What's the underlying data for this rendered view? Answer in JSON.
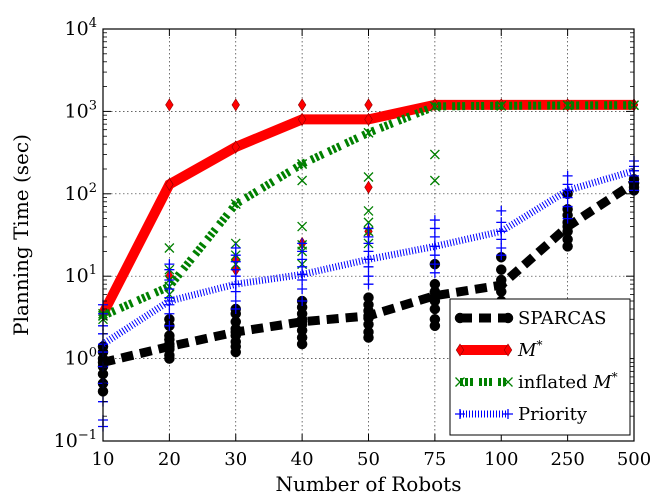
{
  "chart_data": {
    "type": "line",
    "xlabel": "Number of Robots",
    "ylabel": "Planning Time (sec)",
    "y_scale": "log",
    "ylim": [
      0.1,
      10000
    ],
    "y_tick_labels": [
      {
        "base": "10",
        "exp": "−1"
      },
      {
        "base": "10",
        "exp": "0"
      },
      {
        "base": "10",
        "exp": "1"
      },
      {
        "base": "10",
        "exp": "2"
      },
      {
        "base": "10",
        "exp": "3"
      },
      {
        "base": "10",
        "exp": "4"
      }
    ],
    "categories": [
      "10",
      "20",
      "30",
      "40",
      "50",
      "75",
      "100",
      "250",
      "500"
    ],
    "grid": true,
    "legend_position": "lower-right",
    "series": [
      {
        "name": "SPARCAS",
        "color": "#000000",
        "line_style": "dashed-thick",
        "marker": "circle",
        "values": [
          0.9,
          1.4,
          2.1,
          2.8,
          3.3,
          5.8,
          7.8,
          40,
          135
        ],
        "scatter": [
          [
            0.4,
            0.5,
            0.65,
            0.8,
            1.0,
            1.2,
            1.4
          ],
          [
            1.0,
            1.1,
            1.3,
            1.5,
            1.7,
            1.9,
            2.5,
            3.0
          ],
          [
            1.2,
            1.4,
            1.6,
            1.9,
            2.3,
            2.8,
            3.5,
            4.0
          ],
          [
            1.5,
            1.8,
            2.2,
            2.6,
            3.0,
            3.5,
            4.2,
            5.0
          ],
          [
            1.8,
            2.1,
            2.6,
            3.1,
            3.8,
            4.5,
            5.5
          ],
          [
            2.5,
            3.0,
            4.0,
            5.0,
            6.5,
            8.0,
            14
          ],
          [
            5.0,
            6.5,
            9.0,
            12,
            17
          ],
          [
            23,
            28,
            35,
            45,
            55,
            65,
            100
          ],
          [
            110,
            120,
            135,
            150
          ]
        ]
      },
      {
        "name": "M*",
        "label_base": "M",
        "label_sup": "*",
        "color": "#ff0000",
        "line_style": "solid-thick",
        "marker": "thin-diamond",
        "values": [
          3.5,
          130,
          370,
          800,
          800,
          1200,
          1200,
          1200,
          1200
        ],
        "scatter": [
          [
            3.5
          ],
          [
            10,
            130,
            1200
          ],
          [
            12,
            16,
            370,
            1200
          ],
          [
            25,
            800,
            1200
          ],
          [
            35,
            120,
            1200
          ],
          [
            1200
          ],
          [
            1200
          ],
          [
            1200
          ],
          [
            1200
          ]
        ]
      },
      {
        "name": "inflated M*",
        "label_base": "inflated M",
        "label_sup": "*",
        "color": "#008000",
        "line_style": "dashdot-thick",
        "marker": "x",
        "values": [
          3.3,
          7.5,
          75,
          230,
          550,
          1150,
          1170,
          1180,
          1190
        ],
        "scatter": [
          [
            3.0,
            3.3,
            3.5
          ],
          [
            6,
            7.5,
            9,
            12,
            22
          ],
          [
            14,
            18,
            25,
            75
          ],
          [
            14,
            20,
            24,
            40,
            145,
            230
          ],
          [
            25,
            35,
            45,
            62,
            160,
            550
          ],
          [
            145,
            300,
            1150
          ],
          [
            1170
          ],
          [
            1180
          ],
          [
            1190
          ]
        ]
      },
      {
        "name": "Priority",
        "color": "#0000ff",
        "line_style": "dotted-thick",
        "marker": "plus",
        "values": [
          1.5,
          5.0,
          8.0,
          10.5,
          16,
          23,
          35,
          110,
          190
        ],
        "scatter": [
          [
            0.15,
            0.18,
            0.3,
            0.5,
            0.8,
            1.2,
            1.5,
            2.0,
            2.5,
            3.5,
            4.5
          ],
          [
            2.5,
            3.5,
            4.5,
            5.5,
            7,
            9,
            12,
            14
          ],
          [
            4,
            5,
            6.5,
            8,
            10,
            12,
            15,
            18,
            22
          ],
          [
            5,
            7,
            9,
            10.5,
            13,
            16,
            20,
            25
          ],
          [
            8,
            10,
            13,
            16,
            20,
            25,
            30,
            38
          ],
          [
            11,
            14,
            18,
            23,
            30,
            38,
            48
          ],
          [
            18,
            22,
            28,
            35,
            45,
            62
          ],
          [
            50,
            70,
            90,
            110,
            130,
            165
          ],
          [
            110,
            140,
            165,
            190,
            215,
            250
          ]
        ]
      }
    ]
  }
}
